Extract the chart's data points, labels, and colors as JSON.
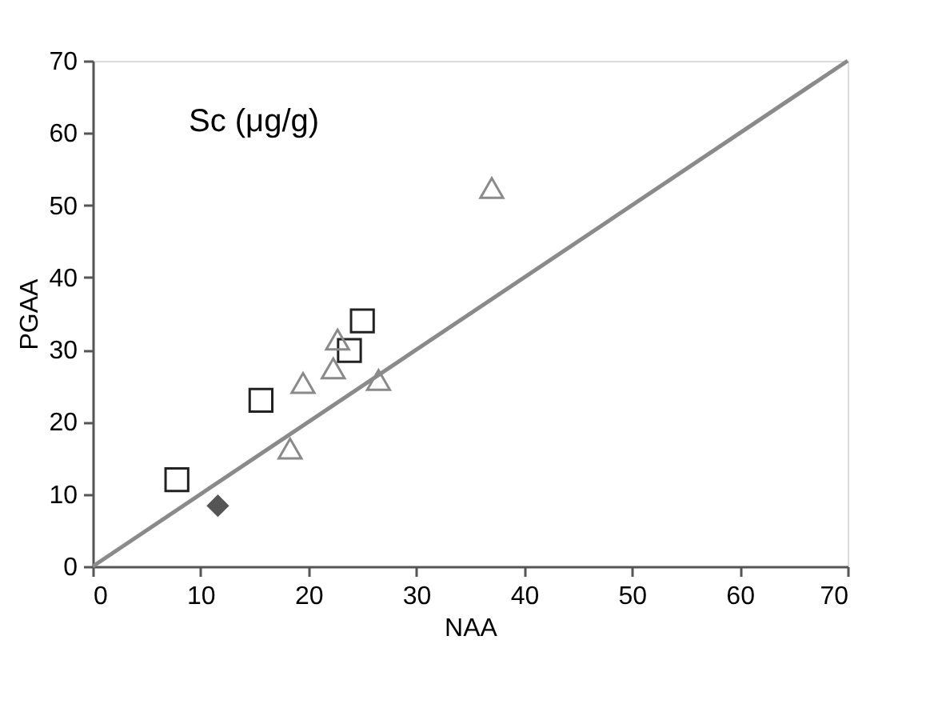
{
  "chart_data": {
    "type": "scatter",
    "xlabel": "NAA",
    "ylabel": "PGAA",
    "annotations": [
      "Sc (μg/g)"
    ],
    "xlim": [
      0,
      70
    ],
    "ylim": [
      0,
      70
    ],
    "xticks": [
      0,
      10,
      20,
      30,
      40,
      50,
      60,
      70
    ],
    "yticks": [
      0,
      10,
      20,
      30,
      40,
      50,
      60,
      70
    ],
    "grid": false,
    "series": [
      {
        "marker": "square",
        "color": "#222222",
        "x": [
          7.8,
          15.6,
          23.8,
          25.0
        ],
        "values": [
          12.0,
          23.0,
          29.9,
          34.0
        ]
      },
      {
        "marker": "triangle",
        "color": "#8a8a8a",
        "x": [
          18.3,
          19.5,
          22.3,
          22.7,
          26.5,
          37.0
        ],
        "values": [
          16.3,
          25.4,
          27.4,
          31.4,
          25.8,
          52.4
        ]
      },
      {
        "marker": "diamond",
        "color": "#555555",
        "x": [
          11.6
        ],
        "values": [
          8.4
        ]
      },
      {
        "type": "line",
        "line_style": "solid",
        "color": "#8a8a8a",
        "x": [
          0,
          70
        ],
        "values": [
          0,
          70
        ]
      }
    ]
  }
}
